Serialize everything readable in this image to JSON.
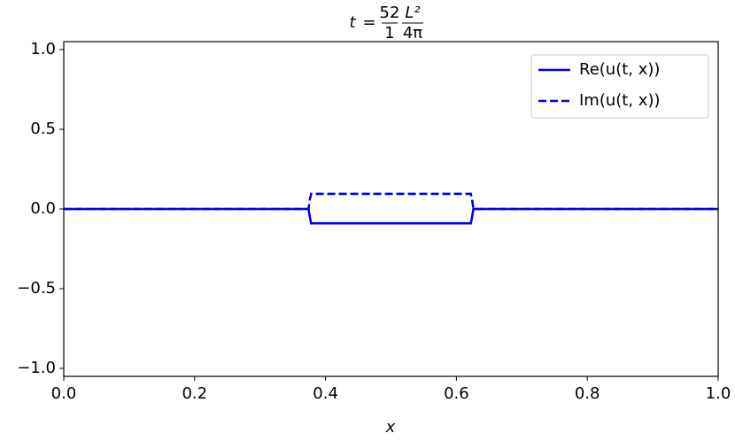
{
  "chart_data": {
    "type": "line",
    "title": {
      "variable": "t",
      "equals": "=",
      "factor": {
        "numerator": "52",
        "denominator": "1"
      },
      "scale": {
        "numerator": "L²",
        "denominator": "4π"
      }
    },
    "xlabel": "x",
    "x": [
      0,
      0.374,
      0.376,
      0.378,
      0.622,
      0.624,
      0.626,
      1.0
    ],
    "series": [
      {
        "name": "Re(u(t, x))",
        "color": "#0000ee",
        "dash": "solid",
        "values": [
          0,
          0,
          -0.05,
          -0.09,
          -0.09,
          -0.05,
          0,
          0
        ]
      },
      {
        "name": "Im(u(t, x))",
        "color": "#0000ee",
        "dash": "dashed",
        "values": [
          0,
          0,
          0.06,
          0.095,
          0.095,
          0.06,
          0,
          0
        ]
      }
    ],
    "xlim": [
      0,
      1.0
    ],
    "ylim": [
      -1.05,
      1.05
    ],
    "xticks": [
      {
        "value": 0,
        "label": "0.0"
      },
      0.2,
      0.4,
      0.6,
      0.8,
      {
        "value": 1.0,
        "label": "1.0"
      }
    ],
    "yticks": [
      {
        "value": -1.0,
        "label": "−1.0"
      },
      {
        "value": -0.5,
        "label": "−0.5"
      },
      {
        "value": 0,
        "label": "0.0"
      },
      0.5,
      {
        "value": 1.0,
        "label": "1.0"
      }
    ],
    "grid": false,
    "legend": "upper right"
  }
}
